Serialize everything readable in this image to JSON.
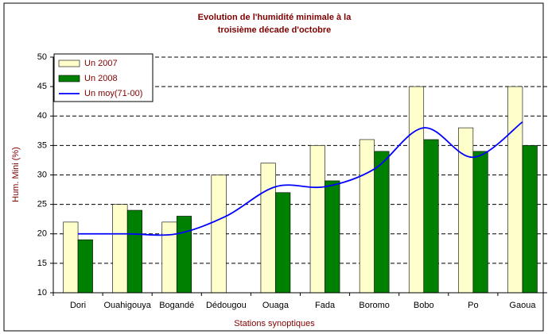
{
  "chart_data": {
    "type": "bar-line",
    "title": [
      "Evolution de l'humidité minimale à la",
      "troisième décade d'octobre"
    ],
    "x_label": "Stations synoptiques",
    "y_label": "Hum. Mini (%)",
    "categories": [
      "Dori",
      "Ouahigouya",
      "Bogandé",
      "Dédougou",
      "Ouaga",
      "Fada",
      "Boromo",
      "Bobo",
      "Po",
      "Gaoua"
    ],
    "series": [
      {
        "name": "Un 2007",
        "type": "bar",
        "color": "#ffffcc",
        "values": [
          22,
          25,
          22,
          30,
          32,
          35,
          36,
          45,
          38,
          45
        ]
      },
      {
        "name": "Un 2008",
        "type": "bar",
        "color": "#008000",
        "values": [
          19,
          24,
          23,
          null,
          27,
          29,
          34,
          36,
          34,
          35
        ]
      },
      {
        "name": "Un moy(71-00)",
        "type": "line",
        "color": "#0000ff",
        "values": [
          20,
          20,
          20,
          23,
          28,
          28,
          31,
          38,
          33,
          39
        ]
      }
    ],
    "ylim": [
      10,
      50
    ],
    "yticks": [
      10,
      15,
      20,
      25,
      30,
      35,
      40,
      45,
      50
    ],
    "grid": true,
    "legend": "top-left"
  }
}
